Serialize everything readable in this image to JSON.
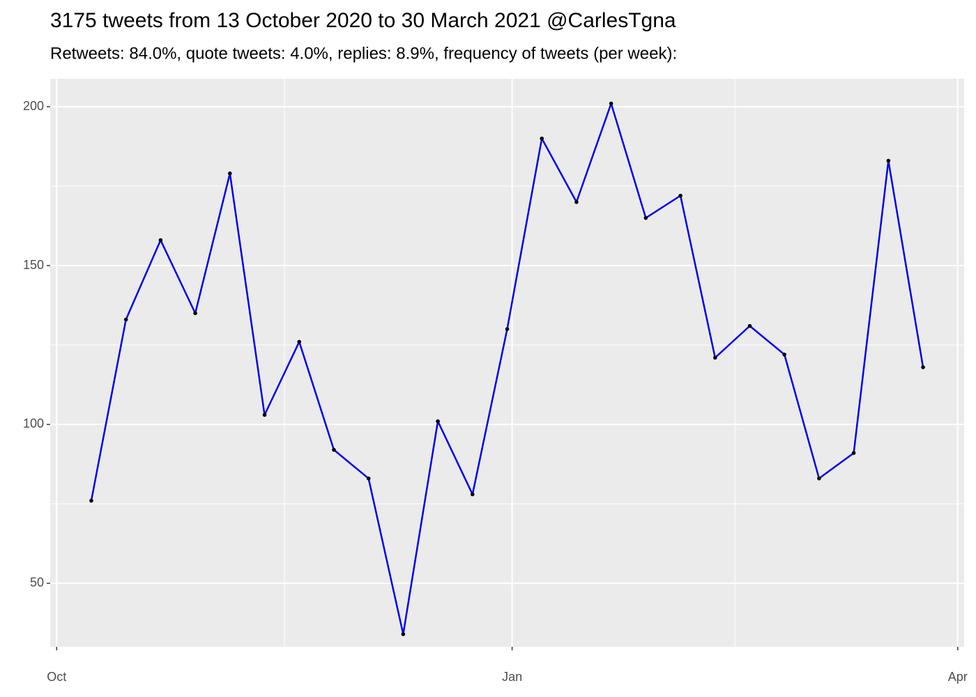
{
  "chart_data": {
    "type": "line",
    "title": "3175 tweets from 13 October 2020 to 30 March 2021 @CarlesTgna",
    "subtitle": "Retweets: 84.0%, quote tweets: 4.0%, replies: 8.9%, frequency of tweets (per week):",
    "x": [
      7,
      14,
      21,
      28,
      35,
      42,
      49,
      56,
      63,
      70,
      77,
      84,
      91,
      98,
      105,
      112,
      119,
      126,
      133,
      140,
      147,
      154,
      161,
      168,
      175
    ],
    "series": [
      {
        "color": "#0000ee",
        "values": [
          76,
          133,
          158,
          135,
          179,
          103,
          126,
          92,
          83,
          34,
          101,
          78,
          130,
          190,
          170,
          201,
          165,
          172,
          121,
          131,
          122,
          83,
          91,
          183,
          118
        ]
      }
    ],
    "point_color": "#000000",
    "xlim": [
      -1.3,
      183.3
    ],
    "xticks": [
      {
        "value": 0,
        "label": "Oct"
      },
      {
        "value": 92,
        "label": "Jan"
      },
      {
        "value": 182,
        "label": "Apr"
      }
    ],
    "ylim": [
      30,
      208.8
    ],
    "yticks": [
      50,
      100,
      150,
      200
    ],
    "grid": true
  }
}
